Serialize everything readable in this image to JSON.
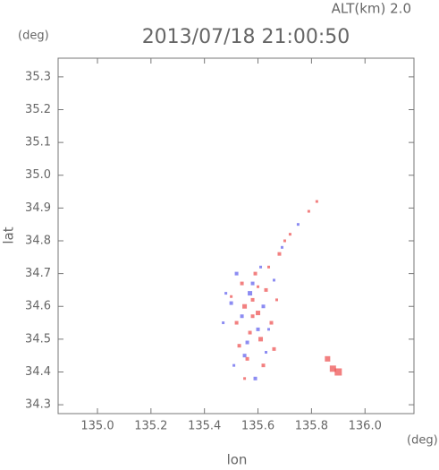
{
  "chart_data": {
    "type": "scatter",
    "title": "2013/07/18 21:00:50",
    "subtitle": "ALT(km) 2.0",
    "x_label": "lon",
    "y_label": "lat",
    "x_unit": "(deg)",
    "y_unit": "(deg)",
    "xlim": [
      134.853,
      136.183
    ],
    "ylim": [
      34.273,
      35.357
    ],
    "xticks": [
      {
        "value": 135.0,
        "label": "135.0"
      },
      135.2,
      135.4,
      135.6,
      135.8,
      {
        "value": 136.0,
        "label": "136.0"
      }
    ],
    "yticks": [
      34.3,
      34.4,
      34.5,
      34.6,
      34.7,
      34.8,
      34.9,
      {
        "value": 35.0,
        "label": "35.0"
      },
      35.1,
      35.2,
      35.3
    ],
    "series": [
      {
        "color": "#ee5555",
        "x": [
          135.55,
          135.58,
          135.6,
          135.63,
          135.52,
          135.57,
          135.61,
          135.66,
          135.54,
          135.59,
          135.64,
          135.56,
          135.62,
          135.68,
          135.72,
          135.79,
          135.82,
          135.86,
          135.9,
          135.88,
          135.5,
          135.58,
          135.67,
          135.53,
          135.6,
          135.65,
          135.7,
          135.55
        ],
        "y": [
          34.6,
          34.62,
          34.58,
          34.65,
          34.55,
          34.52,
          34.5,
          34.47,
          34.67,
          34.7,
          34.72,
          34.44,
          34.42,
          34.76,
          34.82,
          34.89,
          34.92,
          34.44,
          34.4,
          34.41,
          34.63,
          34.57,
          34.62,
          34.48,
          34.66,
          34.55,
          34.8,
          34.38
        ],
        "size": [
          5,
          4,
          5,
          4,
          4,
          4,
          5,
          4,
          4,
          4,
          3,
          4,
          4,
          4,
          3,
          3,
          3,
          6,
          8,
          7,
          3,
          4,
          3,
          4,
          3,
          4,
          3,
          3
        ]
      },
      {
        "color": "#6666ee",
        "x": [
          135.5,
          135.57,
          135.62,
          135.54,
          135.6,
          135.66,
          135.48,
          135.56,
          135.63,
          135.52,
          135.58,
          135.64,
          135.59,
          135.51,
          135.69,
          135.75,
          135.47,
          135.55,
          135.61
        ],
        "y": [
          34.61,
          34.64,
          34.6,
          34.57,
          34.53,
          34.68,
          34.64,
          34.49,
          34.46,
          34.7,
          34.67,
          34.53,
          34.38,
          34.42,
          34.78,
          34.85,
          34.55,
          34.45,
          34.72
        ],
        "size": [
          4,
          5,
          4,
          4,
          4,
          3,
          3,
          4,
          3,
          4,
          4,
          3,
          4,
          3,
          3,
          3,
          3,
          4,
          3
        ]
      }
    ]
  }
}
